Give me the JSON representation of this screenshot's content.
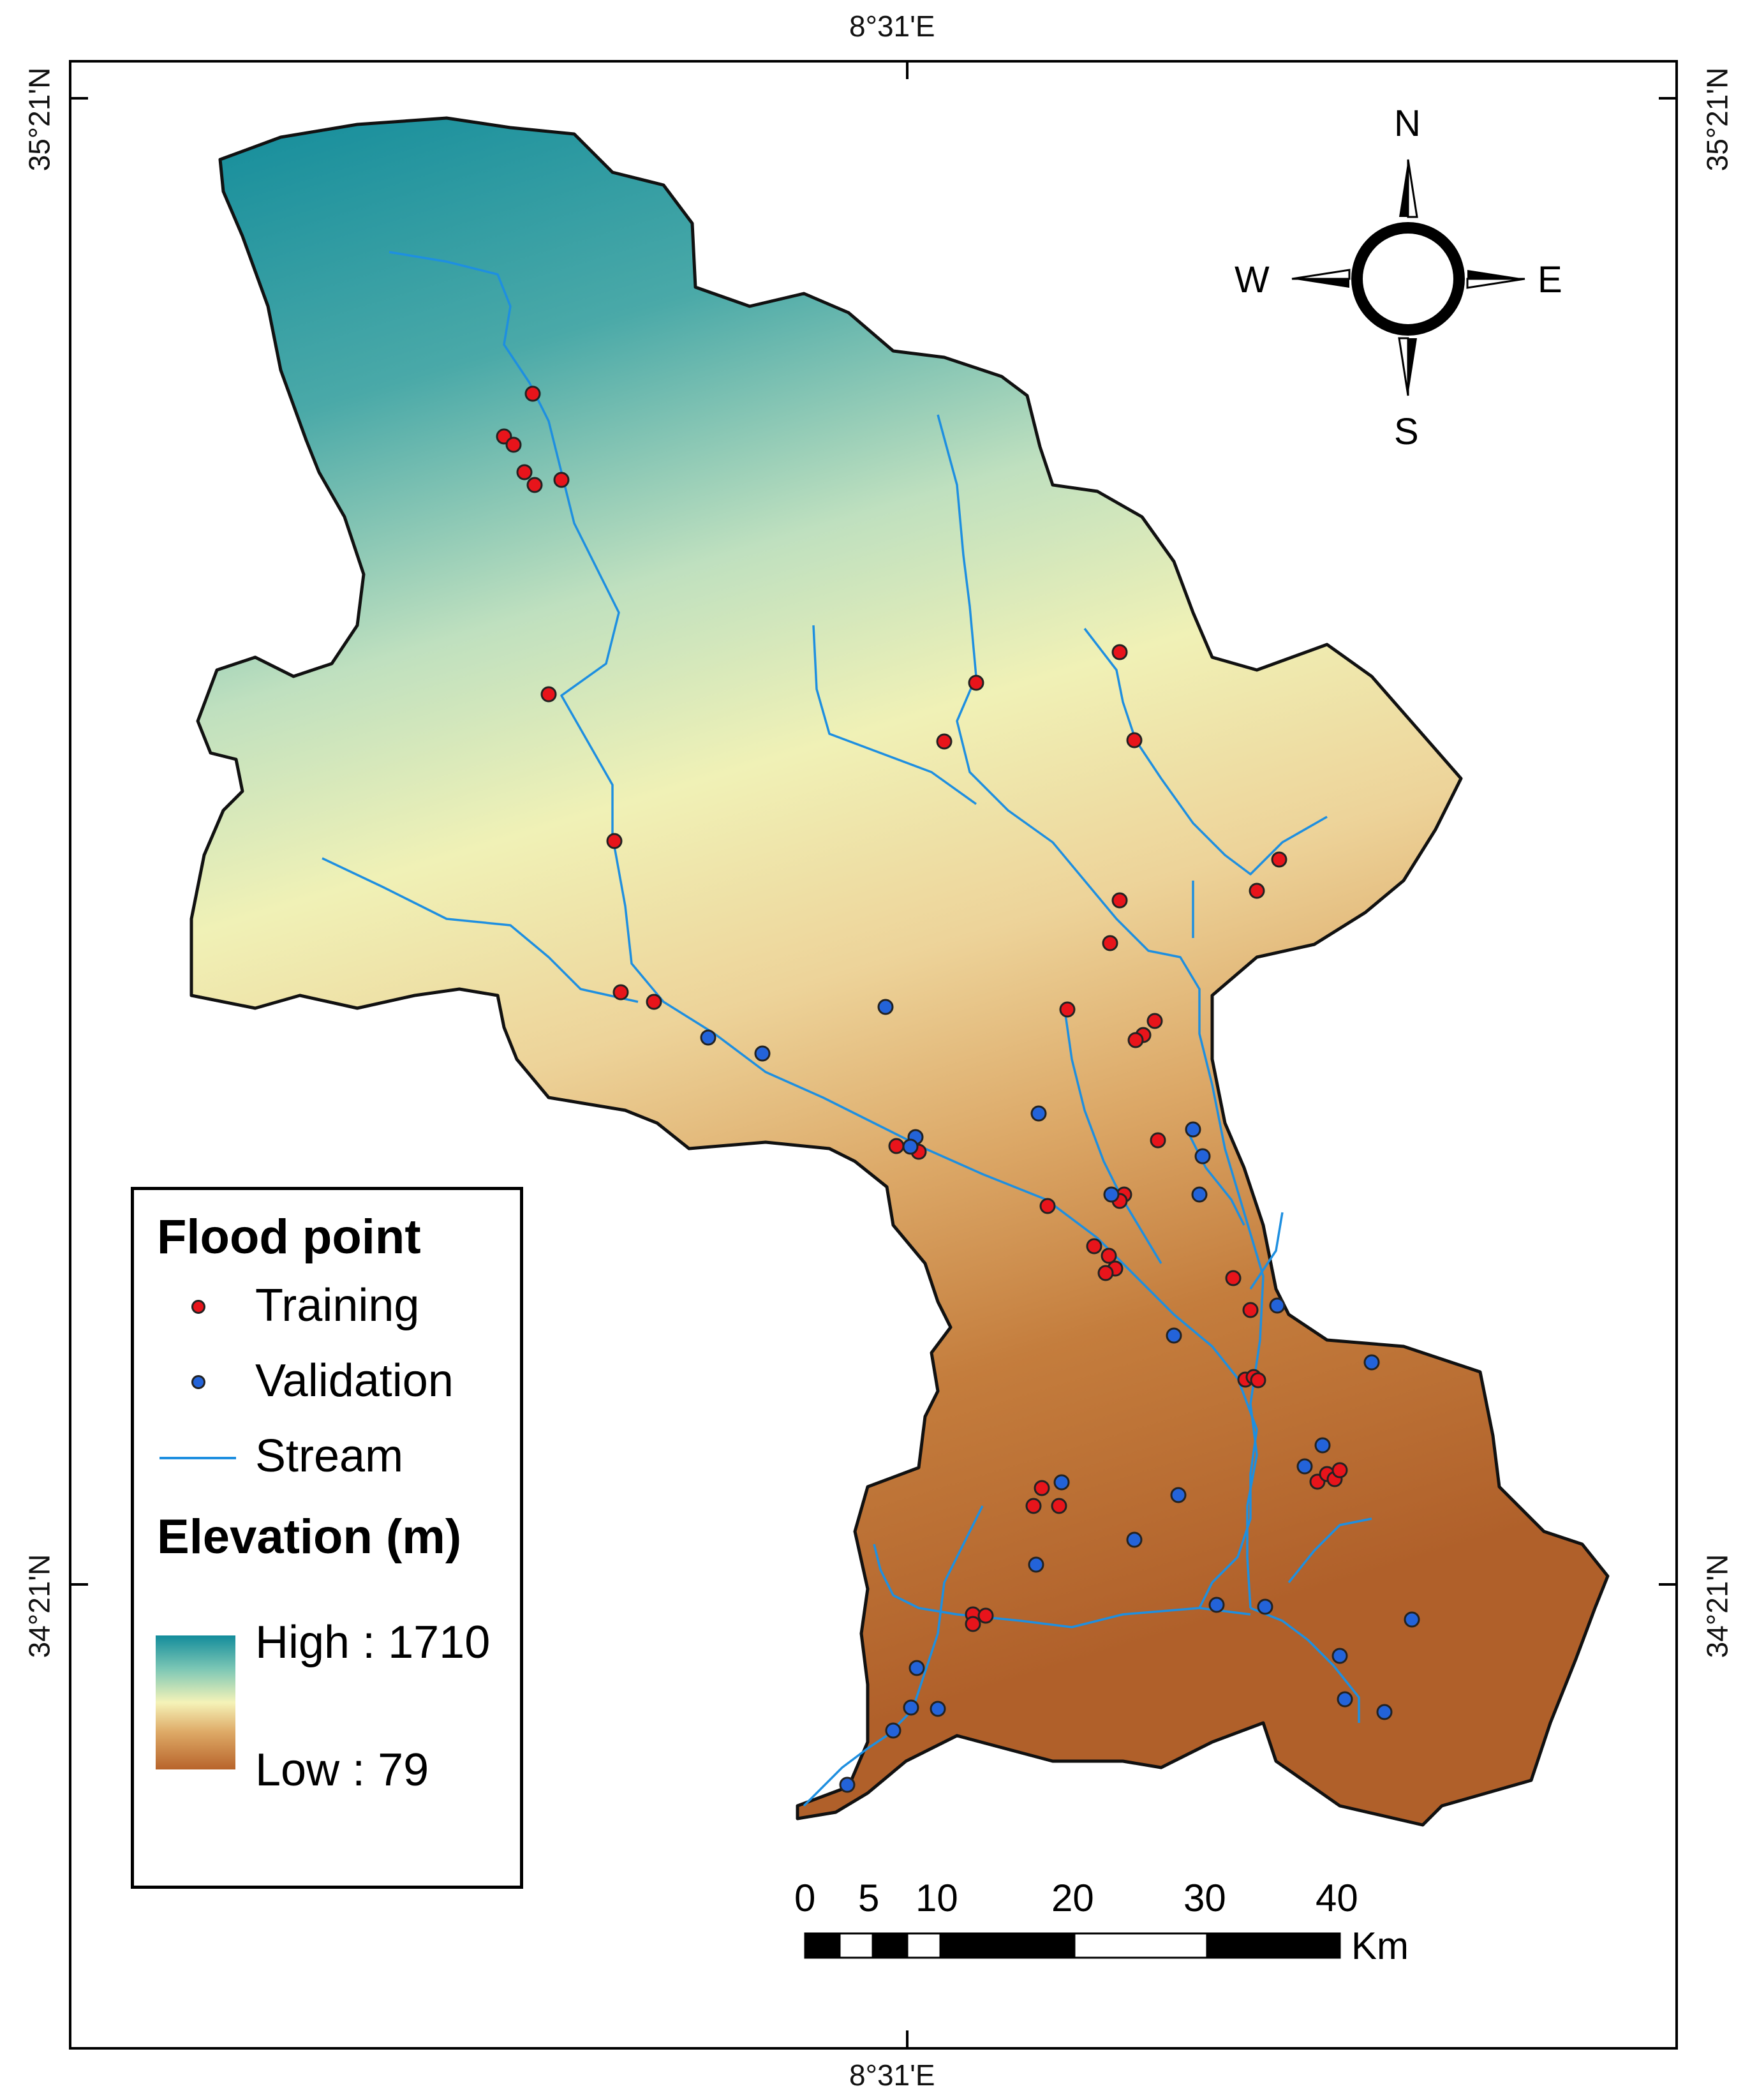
{
  "graticule": {
    "top": "8°31'E",
    "bottom": "8°31'E",
    "left_upper": "35°21'N",
    "left_lower": "34°21'N",
    "right_upper": "35°21'N",
    "right_lower": "34°21'N"
  },
  "compass": {
    "n": "N",
    "s": "S",
    "e": "E",
    "w": "W"
  },
  "legend": {
    "flood_title": "Flood point",
    "training": "Training",
    "validation": "Validation",
    "stream": "Stream",
    "elevation_title": "Elevation (m)",
    "high": "High : 1710",
    "low": "Low : 79"
  },
  "colors": {
    "training": "#e8141b",
    "validation": "#2363d9",
    "stream": "#1e8fe0",
    "elev_high": "#138c9b",
    "elev_mid": "#f5f3b8",
    "elev_low": "#b8642b"
  },
  "scale_bar": {
    "ticks": [
      "0",
      "5",
      "10",
      "20",
      "30",
      "40"
    ],
    "unit": "Km"
  }
}
